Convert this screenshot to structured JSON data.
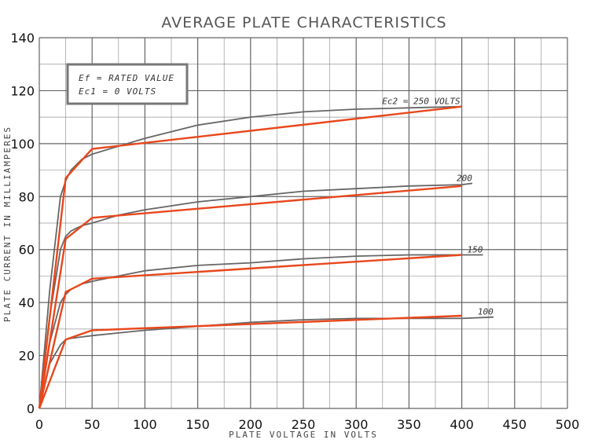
{
  "chart_data": {
    "type": "line",
    "title": "AVERAGE PLATE CHARACTERISTICS",
    "xlabel": "PLATE VOLTAGE IN VOLTS",
    "ylabel": "PLATE CURRENT IN MILLIAMPERES",
    "xlim": [
      0,
      500
    ],
    "ylim": [
      0,
      140
    ],
    "x_ticks": [
      "0",
      "50",
      "100",
      "150",
      "200",
      "250",
      "300",
      "350",
      "400",
      "450",
      "500"
    ],
    "y_ticks": [
      "0",
      "20",
      "40",
      "60",
      "80",
      "100",
      "120",
      "140"
    ],
    "grid": true,
    "annotations": [
      "Ef = RATED VALUE",
      "Ec1 = 0 VOLTS"
    ],
    "colors": {
      "fit": "#e8471c",
      "measured": "#666666",
      "grid": "#555555"
    },
    "series": [
      {
        "name": "Ec2 = 250 VOLTS",
        "fit": {
          "x": [
            0,
            25,
            50,
            400
          ],
          "y": [
            0,
            87,
            98,
            114
          ]
        },
        "measured": {
          "x": [
            0,
            10,
            20,
            25,
            30,
            40,
            50,
            75,
            100,
            150,
            200,
            250,
            300,
            350,
            400
          ],
          "y": [
            0,
            45,
            80,
            86,
            90,
            94,
            96,
            99,
            102,
            107,
            110,
            112,
            113,
            113.5,
            114
          ]
        }
      },
      {
        "name": "200",
        "fit": {
          "x": [
            0,
            25,
            50,
            400
          ],
          "y": [
            0,
            64,
            72,
            84
          ]
        },
        "measured": {
          "x": [
            0,
            10,
            20,
            25,
            30,
            40,
            50,
            75,
            100,
            150,
            200,
            250,
            300,
            350,
            400,
            410
          ],
          "y": [
            0,
            35,
            60,
            65,
            67,
            69,
            70,
            73,
            75,
            78,
            80,
            82,
            83,
            84,
            84.5,
            85
          ]
        }
      },
      {
        "name": "150",
        "fit": {
          "x": [
            0,
            25,
            50,
            400
          ],
          "y": [
            0,
            44,
            49,
            58
          ]
        },
        "measured": {
          "x": [
            0,
            10,
            20,
            25,
            30,
            40,
            50,
            75,
            100,
            150,
            200,
            250,
            300,
            350,
            400,
            420
          ],
          "y": [
            0,
            25,
            40,
            43,
            45,
            47,
            48,
            50,
            52,
            54,
            55,
            56.5,
            57.5,
            58,
            58,
            58
          ]
        }
      },
      {
        "name": "100",
        "fit": {
          "x": [
            0,
            25,
            50,
            400
          ],
          "y": [
            0,
            26,
            29.5,
            35
          ]
        },
        "measured": {
          "x": [
            0,
            10,
            20,
            25,
            30,
            40,
            50,
            75,
            100,
            150,
            200,
            250,
            300,
            350,
            400,
            430
          ],
          "y": [
            0,
            17,
            24,
            26,
            26.5,
            27,
            27.5,
            28.5,
            29.5,
            31,
            32.5,
            33.5,
            34,
            34,
            34,
            34.5
          ]
        }
      }
    ]
  }
}
